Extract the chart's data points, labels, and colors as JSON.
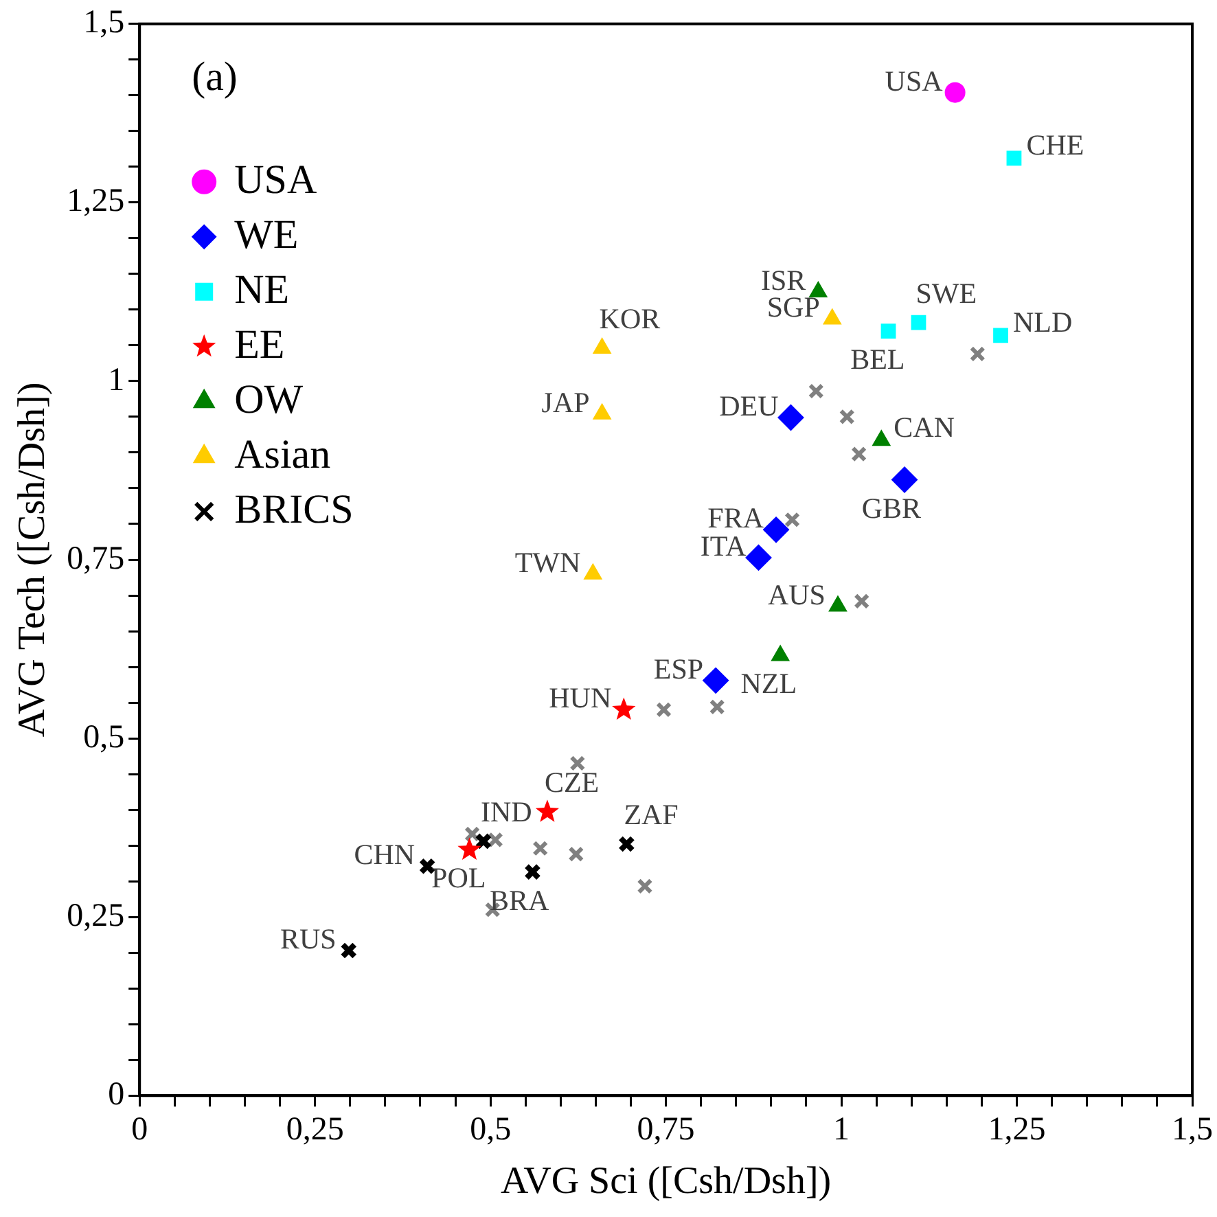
{
  "chart_data": {
    "type": "scatter",
    "xlabel": "AVG Sci ([Csh/Dsh])",
    "ylabel": "AVG Tech ([Csh/Dsh])",
    "xlim": [
      0,
      1.5
    ],
    "ylim": [
      0,
      1.5
    ],
    "xticks": [
      0,
      {
        "value": 0.05,
        "label": null
      },
      {
        "value": 0.1,
        "label": null
      },
      {
        "value": 0.15,
        "label": null
      },
      {
        "value": 0.2,
        "label": null
      },
      {
        "value": 0.25,
        "label": "0,25"
      },
      {
        "value": 0.3,
        "label": null
      },
      {
        "value": 0.35,
        "label": null
      },
      {
        "value": 0.4,
        "label": null
      },
      {
        "value": 0.45,
        "label": null
      },
      {
        "value": 0.5,
        "label": "0,5"
      },
      {
        "value": 0.55,
        "label": null
      },
      {
        "value": 0.6,
        "label": null
      },
      {
        "value": 0.65,
        "label": null
      },
      {
        "value": 0.7,
        "label": null
      },
      {
        "value": 0.75,
        "label": "0,75"
      },
      {
        "value": 0.8,
        "label": null
      },
      {
        "value": 0.85,
        "label": null
      },
      {
        "value": 0.9,
        "label": null
      },
      {
        "value": 0.95,
        "label": null
      },
      1,
      {
        "value": 1.05,
        "label": null
      },
      {
        "value": 1.1,
        "label": null
      },
      {
        "value": 1.15,
        "label": null
      },
      {
        "value": 1.2,
        "label": null
      },
      {
        "value": 1.25,
        "label": "1,25"
      },
      {
        "value": 1.3,
        "label": null
      },
      {
        "value": 1.35,
        "label": null
      },
      {
        "value": 1.4,
        "label": null
      },
      {
        "value": 1.45,
        "label": null
      },
      {
        "value": 1.5,
        "label": "1,5"
      }
    ],
    "yticks": [
      0,
      {
        "value": 0.05,
        "label": null
      },
      {
        "value": 0.1,
        "label": null
      },
      {
        "value": 0.15,
        "label": null
      },
      {
        "value": 0.2,
        "label": null
      },
      {
        "value": 0.25,
        "label": "0,25"
      },
      {
        "value": 0.3,
        "label": null
      },
      {
        "value": 0.35,
        "label": null
      },
      {
        "value": 0.4,
        "label": null
      },
      {
        "value": 0.45,
        "label": null
      },
      {
        "value": 0.5,
        "label": "0,5"
      },
      {
        "value": 0.55,
        "label": null
      },
      {
        "value": 0.6,
        "label": null
      },
      {
        "value": 0.65,
        "label": null
      },
      {
        "value": 0.7,
        "label": null
      },
      {
        "value": 0.75,
        "label": "0,75"
      },
      {
        "value": 0.8,
        "label": null
      },
      {
        "value": 0.85,
        "label": null
      },
      {
        "value": 0.9,
        "label": null
      },
      {
        "value": 0.95,
        "label": null
      },
      1,
      {
        "value": 1.05,
        "label": null
      },
      {
        "value": 1.1,
        "label": null
      },
      {
        "value": 1.15,
        "label": null
      },
      {
        "value": 1.2,
        "label": null
      },
      {
        "value": 1.25,
        "label": "1,25"
      },
      {
        "value": 1.3,
        "label": null
      },
      {
        "value": 1.35,
        "label": null
      },
      {
        "value": 1.4,
        "label": null
      },
      {
        "value": 1.45,
        "label": null
      },
      {
        "value": 1.5,
        "label": "1,5"
      }
    ],
    "grid": false,
    "legend": "top left",
    "series": [
      {
        "name": "USA",
        "color": "#ff00ff",
        "marker": "circle",
        "x": [
          1.162
        ],
        "values": [
          1.404
        ]
      },
      {
        "name": "WE",
        "color": "#0000ff",
        "marker": "diamond",
        "x": [
          0.928,
          1.09,
          0.907,
          0.882,
          0.821
        ],
        "values": [
          0.949,
          0.862,
          0.792,
          0.753,
          0.581
        ]
      },
      {
        "name": "NE",
        "color": "#00ffff",
        "marker": "square",
        "x": [
          1.246,
          1.11,
          1.067,
          1.227
        ],
        "values": [
          1.312,
          1.082,
          1.07,
          1.064
        ]
      },
      {
        "name": "EE",
        "color": "#ff0000",
        "marker": "star",
        "x": [
          0.69,
          0.581,
          0.47
        ],
        "values": [
          0.54,
          0.397,
          0.344
        ]
      },
      {
        "name": "OW",
        "color": "#008000",
        "marker": "triangle",
        "x": [
          0.967,
          1.057,
          0.995,
          0.913
        ],
        "values": [
          1.125,
          0.917,
          0.685,
          0.616
        ]
      },
      {
        "name": "Asian",
        "color": "#ffcc00",
        "marker": "triangle",
        "x": [
          0.987,
          0.659,
          0.659,
          0.646
        ],
        "values": [
          1.087,
          1.046,
          0.954,
          0.73
        ]
      },
      {
        "name": "BRICS",
        "color": "#000000",
        "marker": "cross",
        "x": [
          0.49,
          0.41,
          0.56,
          0.694,
          0.298
        ],
        "values": [
          0.356,
          0.321,
          0.313,
          0.352,
          0.203
        ]
      },
      {
        "color": "#808080",
        "marker": "cross",
        "x": [
          0.964,
          1.008,
          1.025,
          1.194,
          0.93,
          1.029,
          0.747,
          0.823,
          0.624,
          0.474,
          0.507,
          0.571,
          0.622,
          0.72,
          0.503
        ],
        "values": [
          0.986,
          0.95,
          0.898,
          1.038,
          0.806,
          0.692,
          0.54,
          0.544,
          0.465,
          0.366,
          0.358,
          0.346,
          0.338,
          0.293,
          0.26
        ]
      }
    ],
    "annotations": [
      "(a)",
      {
        "text": "USA",
        "x": 1.162,
        "y": 1.404
      },
      {
        "text": "CHE",
        "x": 1.246,
        "y": 1.312
      },
      {
        "text": "SWE",
        "x": 1.11,
        "y": 1.082
      },
      {
        "text": "BEL",
        "x": 1.067,
        "y": 1.07
      },
      {
        "text": "NLD",
        "x": 1.227,
        "y": 1.064
      },
      {
        "text": "ISR",
        "x": 0.967,
        "y": 1.125
      },
      {
        "text": "SGP",
        "x": 0.987,
        "y": 1.087
      },
      {
        "text": "KOR",
        "x": 0.659,
        "y": 1.046
      },
      {
        "text": "JAP",
        "x": 0.659,
        "y": 0.954
      },
      {
        "text": "TWN",
        "x": 0.646,
        "y": 0.73
      },
      {
        "text": "DEU",
        "x": 0.928,
        "y": 0.949
      },
      {
        "text": "CAN",
        "x": 1.057,
        "y": 0.917
      },
      {
        "text": "GBR",
        "x": 1.09,
        "y": 0.862
      },
      {
        "text": "FRA",
        "x": 0.907,
        "y": 0.792
      },
      {
        "text": "ITA",
        "x": 0.882,
        "y": 0.753
      },
      {
        "text": "AUS",
        "x": 0.995,
        "y": 0.685
      },
      {
        "text": "NZL",
        "x": 0.913,
        "y": 0.616
      },
      {
        "text": "ESP",
        "x": 0.821,
        "y": 0.581
      },
      {
        "text": "HUN",
        "x": 0.69,
        "y": 0.54
      },
      {
        "text": "CZE",
        "x": 0.581,
        "y": 0.397
      },
      {
        "text": "POL",
        "x": 0.47,
        "y": 0.344
      },
      {
        "text": "IND",
        "x": 0.49,
        "y": 0.356
      },
      {
        "text": "CHN",
        "x": 0.41,
        "y": 0.321
      },
      {
        "text": "BRA",
        "x": 0.56,
        "y": 0.313
      },
      {
        "text": "ZAF",
        "x": 0.694,
        "y": 0.352
      },
      {
        "text": "RUS",
        "x": 0.298,
        "y": 0.203
      }
    ]
  }
}
